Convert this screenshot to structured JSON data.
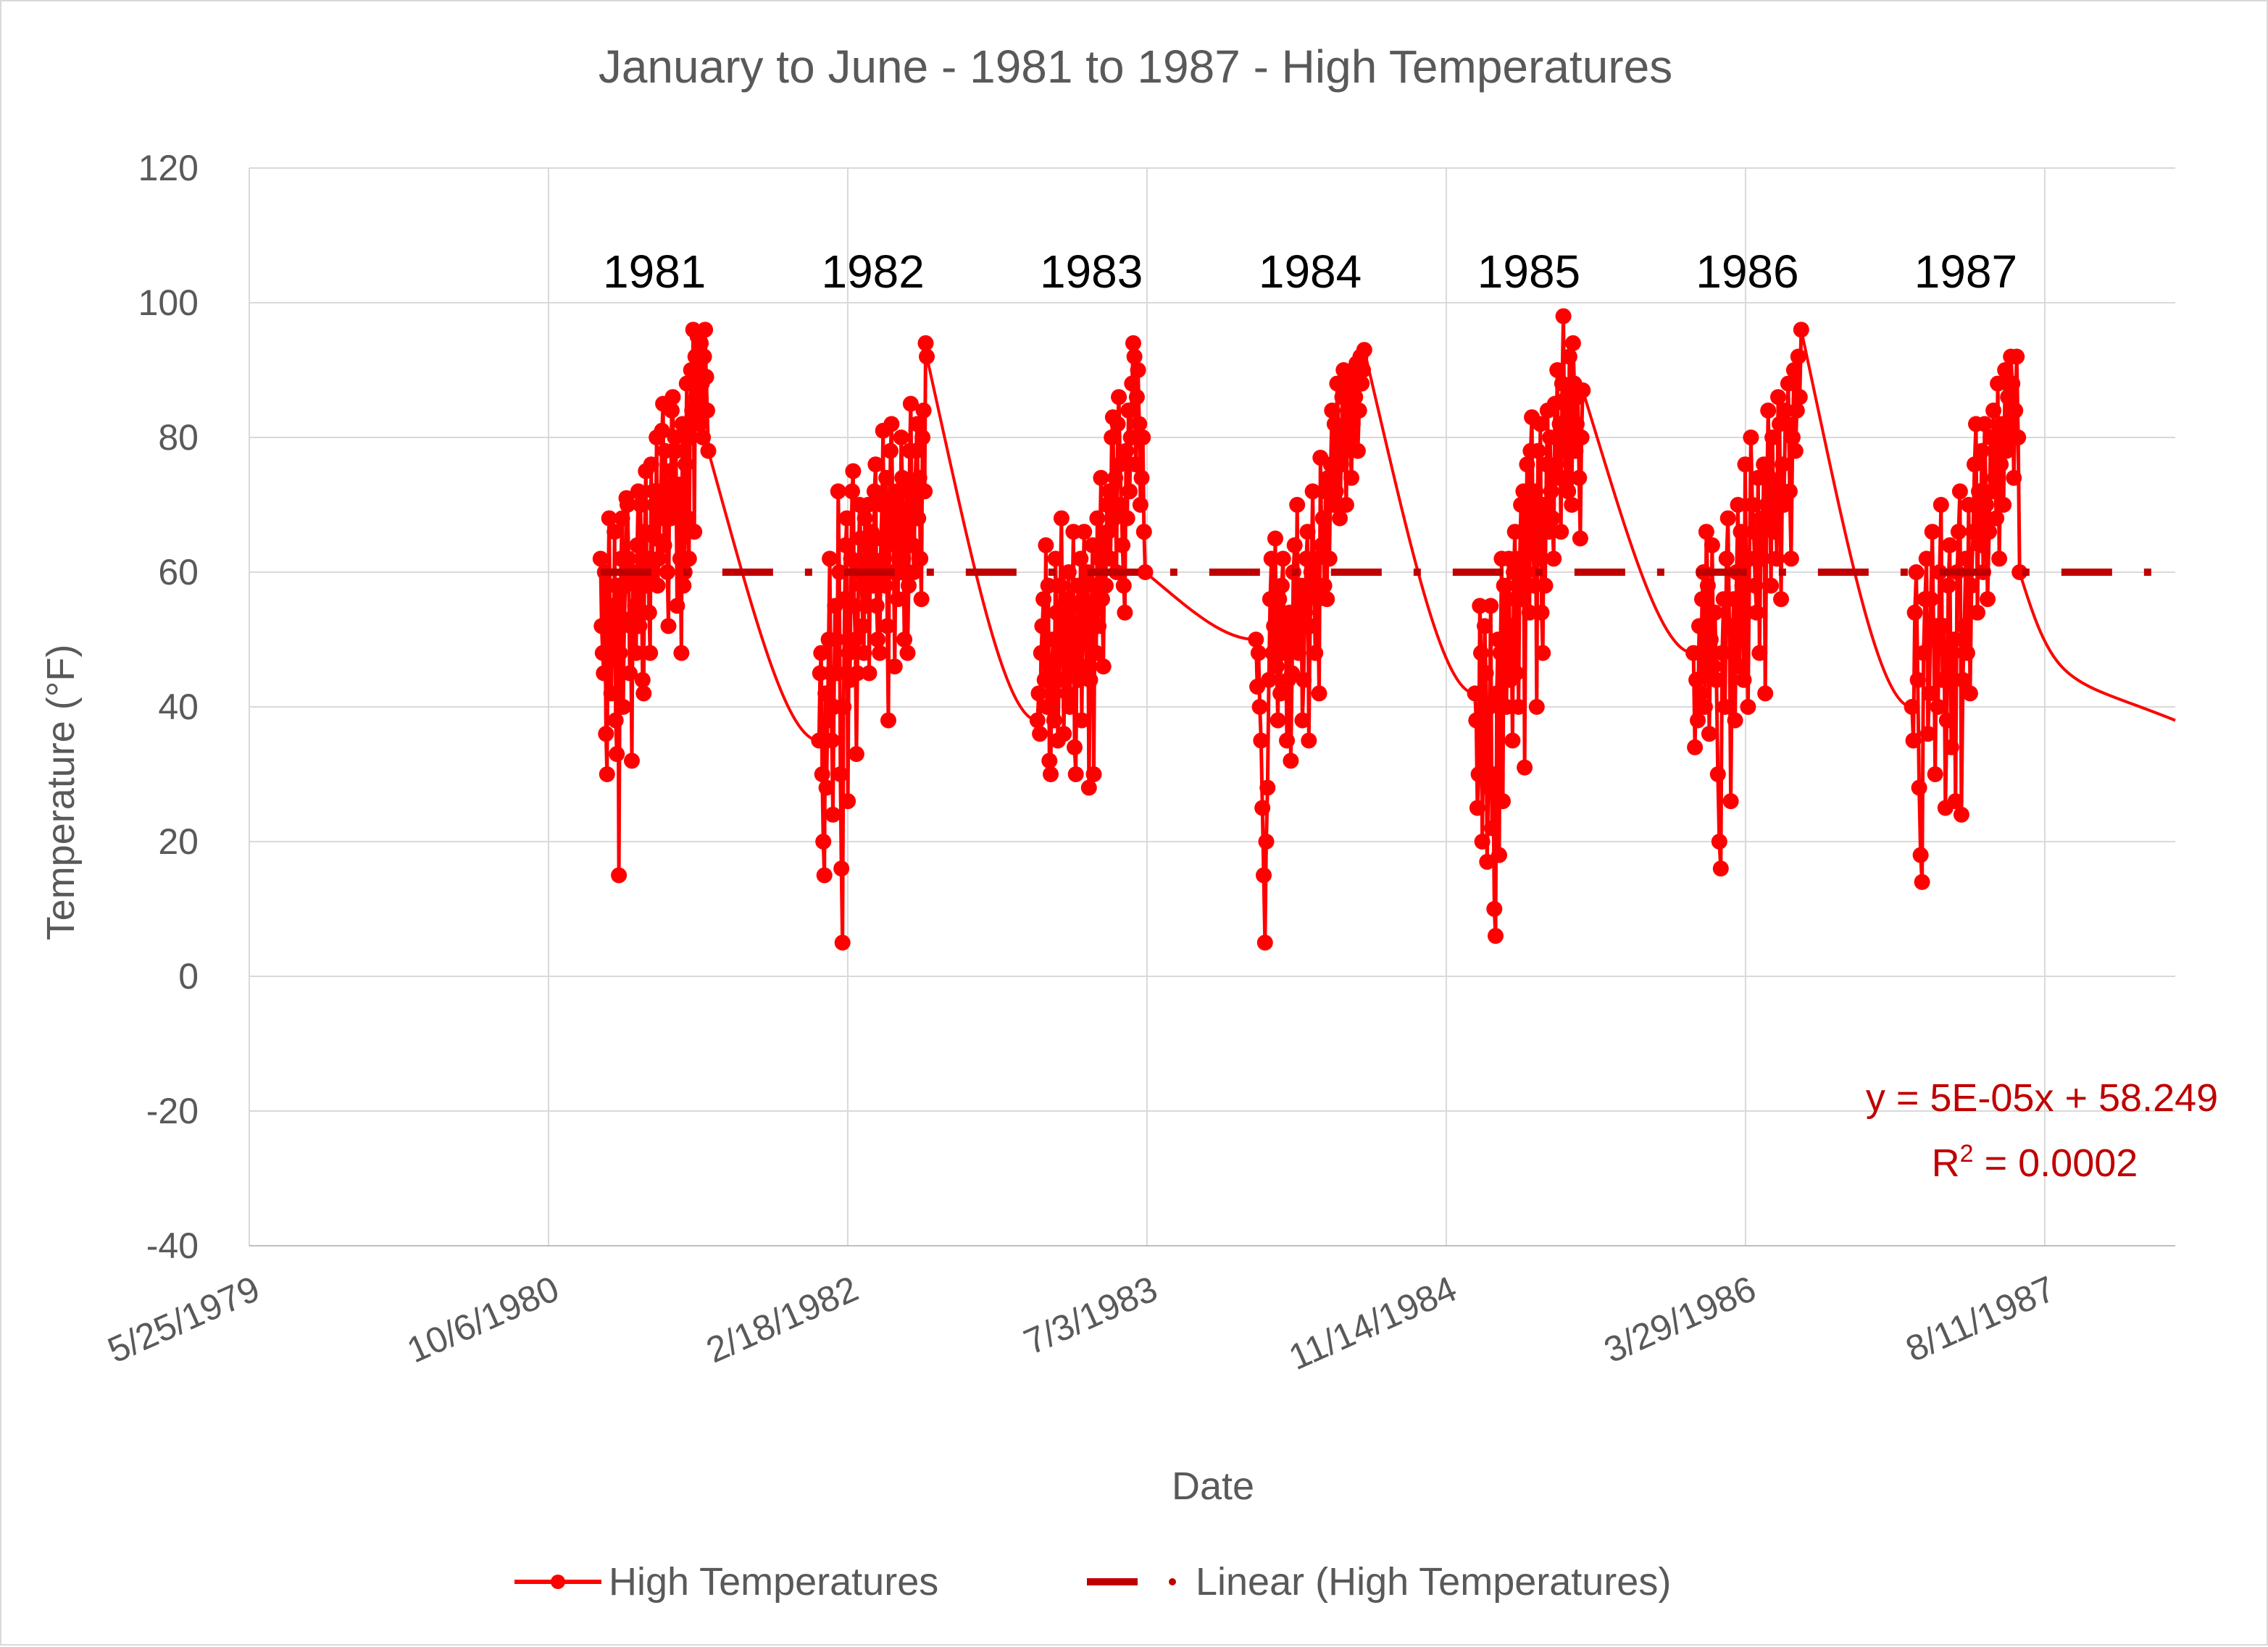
{
  "chart_data": {
    "type": "line",
    "title": "January to June - 1981 to 1987 - High Temperatures",
    "xlabel": "Date",
    "ylabel": "Temperature (°F)",
    "ylim": [
      -40,
      120
    ],
    "yticks": [
      -40,
      -20,
      0,
      20,
      40,
      60,
      80,
      100,
      120
    ],
    "x_axis_type": "date",
    "xlim": [
      "5/25/1979",
      "3/16/1988"
    ],
    "xtick_labels": [
      "5/25/1979",
      "10/6/1980",
      "2/18/1982",
      "7/3/1983",
      "11/14/1984",
      "3/29/1986",
      "8/11/1987"
    ],
    "grid": true,
    "legend_position": "bottom",
    "colors": {
      "series": "#ff0000",
      "trend": "#c00000",
      "text": "#595959",
      "grid": "#d9d9d9"
    },
    "series": [
      {
        "name": "High Temperatures",
        "segments": [
          {
            "year": "1981",
            "start": "1/1/1981",
            "end": "6/30/1981",
            "points": [
              62,
              52,
              48,
              45,
              60,
              36,
              30,
              58,
              68,
              50,
              42,
              55,
              47,
              66,
              38,
              33,
              58,
              15,
              48,
              62,
              68,
              40,
              53,
              58,
              71,
              70,
              62,
              45,
              52,
              32,
              59,
              60,
              55,
              48,
              64,
              72,
              52,
              70,
              58,
              44,
              42,
              66,
              75,
              58,
              62,
              54,
              48,
              76,
              60,
              72,
              70,
              65,
              80,
              58,
              62,
              68,
              72,
              81,
              85,
              64,
              78,
              70,
              60,
              52,
              75,
              68,
              84,
              86,
              72,
              80,
              78,
              55,
              70,
              73,
              62,
              48,
              82,
              58,
              60,
              76,
              88,
              68,
              62,
              80,
              90,
              84,
              96,
              66,
              92,
              86,
              95,
              90,
              82,
              94,
              88,
              80,
              92,
              96,
              89,
              84,
              78
            ]
          },
          {
            "year": "1982",
            "start": "1/1/1982",
            "end": "6/30/1982",
            "points": [
              35,
              45,
              48,
              30,
              20,
              15,
              42,
              28,
              38,
              50,
              62,
              45,
              35,
              24,
              40,
              55,
              50,
              45,
              72,
              60,
              30,
              16,
              5,
              40,
              56,
              64,
              68,
              26,
              48,
              44,
              62,
              72,
              75,
              55,
              50,
              33,
              45,
              60,
              70,
              65,
              58,
              52,
              48,
              68,
              55,
              64,
              70,
              45,
              60,
              66,
              62,
              58,
              72,
              76,
              55,
              50,
              60,
              48,
              65,
              70,
              81,
              62,
              58,
              74,
              52,
              38,
              66,
              78,
              82,
              70,
              60,
              46,
              64,
              72,
              56,
              68,
              60,
              80,
              74,
              62,
              50,
              66,
              72,
              48,
              58,
              78,
              85,
              70,
              64,
              60,
              72,
              78,
              82,
              68,
              74,
              62,
              56,
              80,
              84,
              72,
              94,
              92
            ]
          },
          {
            "year": "1983",
            "start": "1/1/1983",
            "end": "6/30/1983",
            "points": [
              38,
              42,
              36,
              48,
              52,
              56,
              44,
              64,
              40,
              58,
              32,
              30,
              46,
              50,
              38,
              62,
              54,
              35,
              44,
              58,
              68,
              48,
              36,
              52,
              56,
              42,
              60,
              40,
              48,
              55,
              66,
              34,
              30,
              50,
              58,
              44,
              62,
              38,
              56,
              66,
              52,
              46,
              60,
              28,
              44,
              54,
              64,
              30,
              58,
              48,
              68,
              52,
              62,
              74,
              56,
              46,
              64,
              58,
              70,
              66,
              72,
              62,
              80,
              83,
              68,
              74,
              60,
              82,
              86,
              76,
              70,
              64,
              58,
              54,
              78,
              68,
              84,
              72,
              80,
              88,
              94,
              92,
              76,
              86,
              90,
              82,
              70,
              74,
              80,
              66,
              60
            ]
          },
          {
            "year": "1984",
            "start": "1/1/1984",
            "end": "6/30/1984",
            "points": [
              50,
              43,
              48,
              40,
              35,
              25,
              15,
              5,
              20,
              28,
              44,
              56,
              62,
              48,
              52,
              65,
              46,
              38,
              56,
              42,
              58,
              62,
              48,
              52,
              35,
              44,
              54,
              32,
              45,
              60,
              64,
              50,
              70,
              48,
              56,
              58,
              38,
              44,
              54,
              62,
              66,
              35,
              52,
              60,
              72,
              58,
              48,
              62,
              56,
              42,
              77,
              64,
              68,
              58,
              72,
              56,
              74,
              62,
              76,
              84,
              70,
              82,
              72,
              88,
              80,
              68,
              76,
              86,
              90,
              78,
              70,
              84,
              88,
              80,
              74,
              82,
              90,
              86,
              91,
              78,
              84,
              92,
              88,
              90,
              93
            ]
          },
          {
            "year": "1985",
            "start": "1/1/1985",
            "end": "6/30/1985",
            "points": [
              42,
              38,
              25,
              30,
              55,
              48,
              20,
              36,
              52,
              45,
              17,
              28,
              40,
              55,
              22,
              30,
              10,
              6,
              42,
              50,
              18,
              48,
              62,
              26,
              58,
              48,
              40,
              56,
              62,
              44,
              52,
              35,
              60,
              66,
              45,
              58,
              40,
              62,
              70,
              56,
              72,
              31,
              60,
              76,
              66,
              54,
              78,
              83,
              64,
              58,
              72,
              40,
              78,
              62,
              82,
              54,
              48,
              70,
              58,
              76,
              84,
              66,
              80,
              72,
              68,
              62,
              85,
              76,
              90,
              74,
              82,
              66,
              88,
              98,
              80,
              74,
              86,
              72,
              92,
              84,
              70,
              94,
              88,
              78,
              82,
              86,
              74,
              65,
              80,
              87
            ]
          },
          {
            "year": "1986",
            "start": "1/1/1986",
            "end": "6/30/1986",
            "points": [
              48,
              34,
              44,
              38,
              52,
              42,
              56,
              60,
              40,
              66,
              58,
              36,
              50,
              64,
              46,
              54,
              44,
              30,
              20,
              16,
              48,
              56,
              40,
              62,
              68,
              52,
              26,
              48,
              56,
              38,
              60,
              70,
              46,
              66,
              58,
              44,
              76,
              54,
              40,
              62,
              80,
              70,
              66,
              58,
              54,
              74,
              48,
              68,
              62,
              76,
              42,
              70,
              84,
              74,
              58,
              80,
              66,
              72,
              62,
              86,
              82,
              56,
              76,
              70,
              84,
              82,
              88,
              72,
              62,
              80,
              90,
              78,
              84,
              92,
              86,
              96
            ]
          },
          {
            "year": "1987",
            "start": "1/1/1987",
            "end": "6/30/1987",
            "points": [
              40,
              35,
              54,
              60,
              44,
              28,
              18,
              14,
              48,
              56,
              62,
              36,
              42,
              56,
              66,
              50,
              30,
              52,
              40,
              60,
              70,
              44,
              52,
              25,
              38,
              58,
              64,
              34,
              48,
              50,
              26,
              60,
              66,
              72,
              24,
              44,
              52,
              62,
              48,
              70,
              42,
              58,
              66,
              76,
              82,
              54,
              72,
              64,
              78,
              60,
              82,
              70,
              56,
              66,
              80,
              72,
              84,
              74,
              68,
              88,
              62,
              76,
              82,
              70,
              90,
              78,
              86,
              80,
              92,
              88,
              74,
              84,
              92,
              80,
              60
            ]
          }
        ]
      },
      {
        "name": "Linear (High Temperatures)",
        "trend": {
          "type": "linear",
          "slope": 5e-05,
          "intercept": 58.249,
          "display_value": 60
        }
      }
    ],
    "annotations": {
      "years": [
        "1981",
        "1982",
        "1983",
        "1984",
        "1985",
        "1986",
        "1987"
      ],
      "trend_equation": "y = 5E-05x + 58.249",
      "r2_prefix": "R",
      "r2_sup": "2",
      "r2_suffix": " = 0.0002"
    }
  }
}
